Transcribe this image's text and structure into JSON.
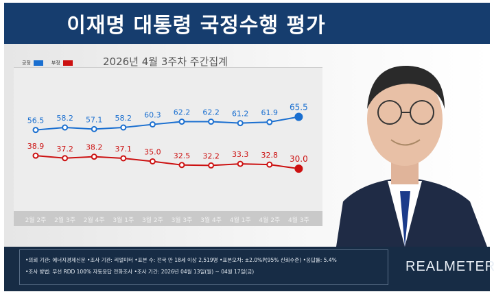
{
  "title": "이재명 대통령 국정수행 평가",
  "chart_data": {
    "type": "line",
    "title": "2026년 4월 3주차 주간집계",
    "categories": [
      "2월 2주",
      "2월 3주",
      "2월 4주",
      "3월 1주",
      "3월 2주",
      "3월 3주",
      "3월 4주",
      "4월 1주",
      "4월 2주",
      "4월 3주"
    ],
    "series": [
      {
        "name": "긍정",
        "color": "#1a6fd0",
        "values": [
          56.5,
          58.2,
          57.1,
          58.2,
          60.3,
          62.2,
          62.2,
          61.2,
          61.9,
          65.5
        ]
      },
      {
        "name": "부정",
        "color": "#cc1111",
        "values": [
          38.9,
          37.2,
          38.2,
          37.1,
          35.0,
          32.5,
          32.2,
          33.3,
          32.8,
          30.0
        ]
      }
    ],
    "legend": "top-left",
    "grid": false
  },
  "footer": {
    "line1": "•의뢰 기관: 에너지경제신문 •조사 기관: 리얼미터 •표본 수: 전국 만 18세 이상 2,519명 •표본오차: ±2.0%P(95% 신뢰수준) •응답률: 5.4%",
    "line2": "•조사 방법: 무선 RDD 100% 자동응답 전화조사 •조사 기간: 2026년 04월 13일(월) ~ 04월 17일(금)",
    "brand": "REALMETER"
  }
}
